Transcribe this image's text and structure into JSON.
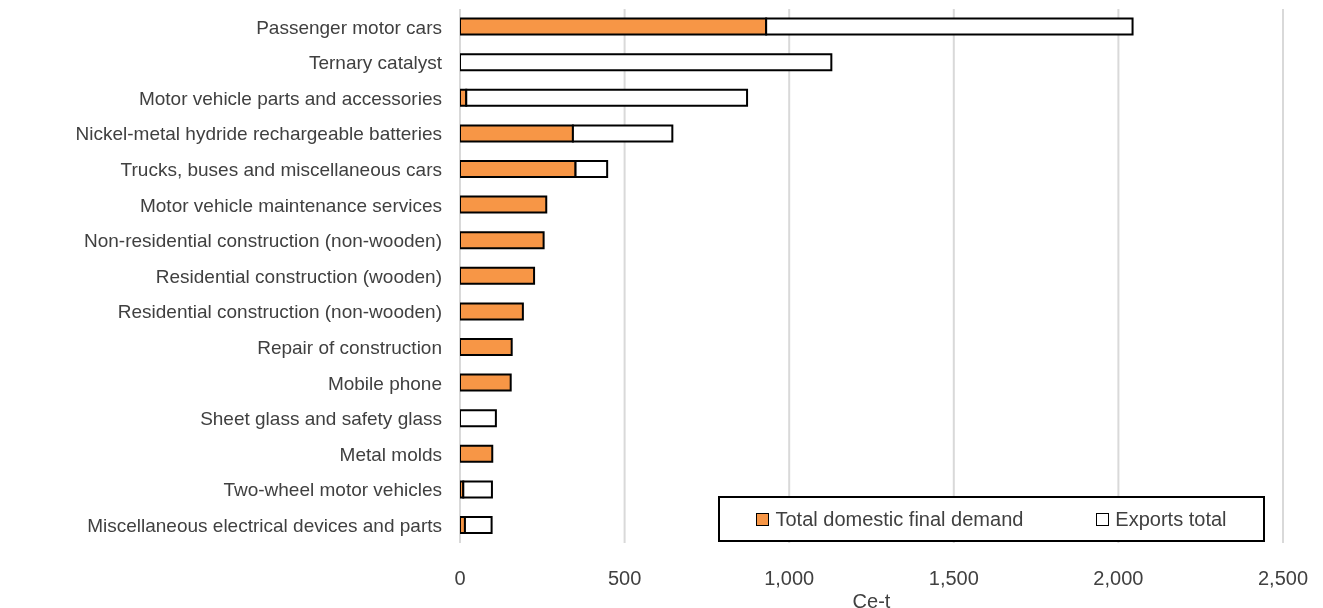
{
  "chart_data": {
    "type": "bar",
    "orientation": "horizontal",
    "stacked": true,
    "categories": [
      "Passenger motor cars",
      "Ternary catalyst",
      "Motor vehicle parts and accessories",
      "Nickel-metal hydride rechargeable batteries",
      "Trucks, buses and miscellaneous cars",
      "Motor vehicle maintenance services",
      "Non-residential construction (non-wooden)",
      "Residential construction (wooden)",
      "Residential construction (non-wooden)",
      "Repair of construction",
      "Mobile phone",
      "Sheet glass and safety glass",
      "Metal molds",
      "Two-wheel motor vehicles",
      "Miscellaneous electrical devices and parts"
    ],
    "series": [
      {
        "name": "Total domestic final demand",
        "color": "#f79646",
        "values": [
          930,
          0,
          19,
          343,
          351,
          262,
          254,
          225,
          191,
          157,
          154,
          0,
          98,
          10,
          15
        ]
      },
      {
        "name": "Exports total",
        "color": "#ffffff",
        "values": [
          1113,
          1128,
          853,
          302,
          96,
          0,
          0,
          0,
          0,
          0,
          0,
          109,
          0,
          87,
          81
        ]
      }
    ],
    "xlabel": "Ce-t",
    "xlim": [
      0,
      2500
    ],
    "xticks": [
      0,
      {
        "value": 500,
        "label": "500"
      },
      {
        "value": 1000,
        "label": "1,000"
      },
      {
        "value": 1500,
        "label": "1,500"
      },
      {
        "value": 2000,
        "label": "2,000"
      },
      {
        "value": 2500,
        "label": "2,500"
      }
    ],
    "grid": "x",
    "legend": "bottom right"
  }
}
